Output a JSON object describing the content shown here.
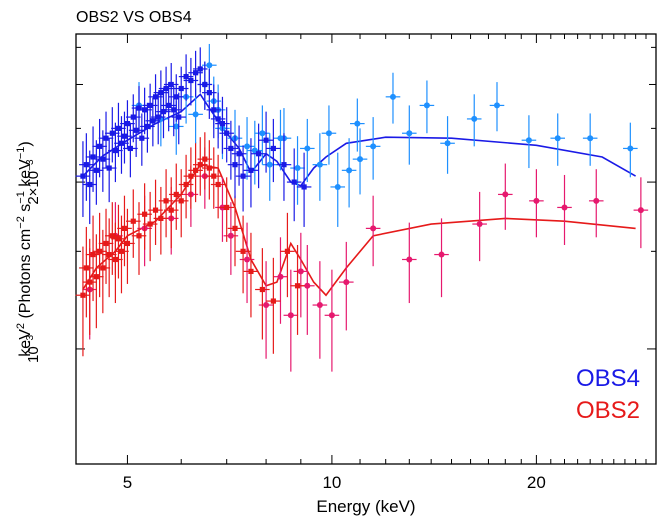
{
  "chart_data": {
    "type": "scatter",
    "title": "OBS2 VS OBS4",
    "xlabel": "Energy (keV)",
    "ylabel_main": "keV",
    "ylabel_sup": "2",
    "ylabel_open": " (Photons cm",
    "ylabel_sup2": "−2",
    "ylabel_mid": " s",
    "ylabel_sup3": "−1",
    "ylabel_mid2": " keV",
    "ylabel_sup4": "−1",
    "ylabel_close": ")",
    "xscale": "log",
    "yscale": "log",
    "xlim": [
      4.2,
      30
    ],
    "ylim": [
      0.00062,
      0.0037
    ],
    "x_ticks": [
      {
        "value": 5,
        "label": "5"
      },
      {
        "value": 10,
        "label": "10"
      },
      {
        "value": 20,
        "label": "20"
      }
    ],
    "y_ticks": [
      {
        "value": 0.001,
        "base": "10",
        "exp": "−3",
        "coef": ""
      },
      {
        "value": 0.002,
        "base": "10",
        "exp": "−3",
        "coef": "2×"
      }
    ],
    "legend": [
      {
        "label": "OBS4",
        "color": "#1a1ae6"
      },
      {
        "label": "OBS2",
        "color": "#e61a1a"
      }
    ],
    "series": [
      {
        "name": "OBS4",
        "data_color": "#1a1ae6",
        "data_color2": "#1e90ff",
        "model_color": "#1a1ae6",
        "model": [
          [
            4.3,
            0.00205
          ],
          [
            4.6,
            0.00223
          ],
          [
            5.0,
            0.00238
          ],
          [
            5.5,
            0.00255
          ],
          [
            6.0,
            0.00268
          ],
          [
            6.4,
            0.00288
          ],
          [
            6.6,
            0.00272
          ],
          [
            7.0,
            0.00245
          ],
          [
            7.3,
            0.0023
          ],
          [
            7.6,
            0.00208
          ],
          [
            8.0,
            0.00225
          ],
          [
            8.3,
            0.00218
          ],
          [
            8.7,
            0.002
          ],
          [
            9.0,
            0.00197
          ],
          [
            9.4,
            0.00212
          ],
          [
            9.8,
            0.00222
          ],
          [
            10.5,
            0.00235
          ],
          [
            12,
            0.00241
          ],
          [
            15,
            0.0024
          ],
          [
            20,
            0.00233
          ],
          [
            25,
            0.00222
          ],
          [
            28,
            0.00205
          ]
        ],
        "points": [
          [
            4.3,
            0.00205,
            0.00032
          ],
          [
            4.35,
            0.00215,
            0.0003
          ],
          [
            4.4,
            0.00198,
            0.0003
          ],
          [
            4.45,
            0.00222,
            0.0003
          ],
          [
            4.5,
            0.0021,
            0.00028
          ],
          [
            4.55,
            0.00232,
            0.00028
          ],
          [
            4.6,
            0.0022,
            0.00028
          ],
          [
            4.65,
            0.0024,
            0.00028
          ],
          [
            4.7,
            0.00212,
            0.00028
          ],
          [
            4.75,
            0.00245,
            0.00028
          ],
          [
            4.8,
            0.00228,
            0.00028
          ],
          [
            4.85,
            0.0025,
            0.00028
          ],
          [
            4.9,
            0.00235,
            0.00028
          ],
          [
            4.95,
            0.00242,
            0.00026
          ],
          [
            5.0,
            0.00255,
            0.00026
          ],
          [
            5.05,
            0.0023,
            0.00026
          ],
          [
            5.1,
            0.00262,
            0.00026
          ],
          [
            5.15,
            0.00248,
            0.00026
          ],
          [
            5.2,
            0.00272,
            0.00026
          ],
          [
            5.25,
            0.0024,
            0.00026
          ],
          [
            5.3,
            0.0027,
            0.00026
          ],
          [
            5.35,
            0.00252,
            0.00026
          ],
          [
            5.4,
            0.00275,
            0.00026
          ],
          [
            5.45,
            0.00258,
            0.00026
          ],
          [
            5.5,
            0.00285,
            0.00028
          ],
          [
            5.55,
            0.00262,
            0.00028
          ],
          [
            5.6,
            0.0029,
            0.00028
          ],
          [
            5.65,
            0.00268,
            0.00028
          ],
          [
            5.7,
            0.00295,
            0.00028
          ],
          [
            5.75,
            0.00275,
            0.00028
          ],
          [
            5.8,
            0.003,
            0.00028
          ],
          [
            5.85,
            0.0027,
            0.00028
          ],
          [
            5.9,
            0.00285,
            0.00028
          ],
          [
            5.95,
            0.00262,
            0.00028
          ],
          [
            6.0,
            0.00295,
            0.00028
          ],
          [
            6.1,
            0.0031,
            0.0003
          ],
          [
            6.2,
            0.00305,
            0.0003
          ],
          [
            6.3,
            0.00315,
            0.0003
          ],
          [
            6.4,
            0.0032,
            0.0003
          ],
          [
            6.5,
            0.003,
            0.0003
          ],
          [
            6.6,
            0.0029,
            0.0003
          ],
          [
            6.7,
            0.0027,
            0.0003
          ],
          [
            6.8,
            0.0026,
            0.0003
          ],
          [
            6.9,
            0.00255,
            0.0003
          ],
          [
            7.0,
            0.00245,
            0.00028
          ],
          [
            7.1,
            0.0023,
            0.00028
          ],
          [
            7.2,
            0.00215,
            0.00028
          ],
          [
            7.3,
            0.00225,
            0.00028
          ],
          [
            7.4,
            0.00205,
            0.00028
          ],
          [
            7.6,
            0.0021,
            0.0003
          ],
          [
            7.8,
            0.00225,
            0.0003
          ],
          [
            8.0,
            0.00238,
            0.0003
          ],
          [
            8.2,
            0.0023,
            0.0003
          ],
          [
            8.5,
            0.00215,
            0.0003
          ],
          [
            8.8,
            0.002,
            0.0003
          ],
          [
            9.1,
            0.00196,
            0.0003
          ]
        ],
        "points_light": [
          [
            5.2,
            0.00275,
            0.00028
          ],
          [
            5.6,
            0.0026,
            0.00028
          ],
          [
            5.9,
            0.00252,
            0.00028
          ],
          [
            6.1,
            0.00285,
            0.0003
          ],
          [
            6.3,
            0.00265,
            0.0003
          ],
          [
            6.5,
            0.003,
            0.0003
          ],
          [
            6.6,
            0.00325,
            0.0003
          ],
          [
            6.7,
            0.0028,
            0.0003
          ],
          [
            6.8,
            0.0027,
            0.0003
          ],
          [
            6.9,
            0.0025,
            0.0003
          ],
          [
            7.2,
            0.0024,
            0.0003
          ],
          [
            7.5,
            0.00232,
            0.0003
          ],
          [
            7.7,
            0.00228,
            0.0003
          ],
          [
            8.1,
            0.00215,
            0.0003
          ],
          [
            8.4,
            0.0024,
            0.0003
          ],
          [
            8.9,
            0.00212,
            0.0003
          ],
          [
            9.2,
            0.0023,
            0.0003
          ],
          [
            9.6,
            0.00215,
            0.0003
          ],
          [
            10.2,
            0.00196,
            0.0003
          ],
          [
            10.6,
            0.0021,
            0.0003
          ],
          [
            11.0,
            0.0022,
            0.0003
          ],
          [
            11.5,
            0.00232,
            0.0003
          ],
          [
            12.3,
            0.00285,
            0.0003
          ],
          [
            13.0,
            0.00245,
            0.0003
          ],
          [
            13.8,
            0.00275,
            0.0003
          ],
          [
            14.8,
            0.00235,
            0.00028
          ],
          [
            16.2,
            0.0026,
            0.00028
          ],
          [
            17.5,
            0.00275,
            0.00028
          ],
          [
            19.5,
            0.00238,
            0.00026
          ],
          [
            21.5,
            0.0024,
            0.00026
          ],
          [
            24.0,
            0.0024,
            0.00026
          ],
          [
            27.5,
            0.0023,
            0.00026
          ],
          [
            8.5,
            0.0024,
            0.00032
          ],
          [
            7.9,
            0.00245,
            0.0003
          ],
          [
            9.9,
            0.00245,
            0.0003
          ],
          [
            10.9,
            0.00255,
            0.00028
          ]
        ]
      },
      {
        "name": "OBS2",
        "data_color": "#e61a1a",
        "data_color2": "#e6196e",
        "model_color": "#e61a1a",
        "model": [
          [
            4.3,
            0.00128
          ],
          [
            4.5,
            0.0014
          ],
          [
            4.8,
            0.0015
          ],
          [
            5.0,
            0.0016
          ],
          [
            5.5,
            0.0017
          ],
          [
            6.0,
            0.0019
          ],
          [
            6.4,
            0.00215
          ],
          [
            6.8,
            0.00212
          ],
          [
            7.2,
            0.0018
          ],
          [
            7.6,
            0.00145
          ],
          [
            8.0,
            0.0013
          ],
          [
            8.3,
            0.00132
          ],
          [
            8.7,
            0.00155
          ],
          [
            9.0,
            0.00145
          ],
          [
            9.4,
            0.00132
          ],
          [
            9.8,
            0.00125
          ],
          [
            10.5,
            0.0014
          ],
          [
            11.5,
            0.0016
          ],
          [
            14,
            0.00168
          ],
          [
            18,
            0.00172
          ],
          [
            22,
            0.0017
          ],
          [
            28,
            0.00165
          ]
        ],
        "points": [
          [
            4.3,
            0.00125,
            0.00028
          ],
          [
            4.35,
            0.0014,
            0.00026
          ],
          [
            4.4,
            0.00132,
            0.00026
          ],
          [
            4.45,
            0.00148,
            0.00026
          ],
          [
            4.5,
            0.00135,
            0.00026
          ],
          [
            4.55,
            0.0015,
            0.00026
          ],
          [
            4.6,
            0.0014,
            0.00024
          ],
          [
            4.65,
            0.00155,
            0.00024
          ],
          [
            4.7,
            0.00148,
            0.00024
          ],
          [
            4.75,
            0.0016,
            0.00024
          ],
          [
            4.8,
            0.00145,
            0.00024
          ],
          [
            4.85,
            0.00158,
            0.00024
          ],
          [
            4.9,
            0.0015,
            0.00024
          ],
          [
            4.95,
            0.00165,
            0.00024
          ],
          [
            5.0,
            0.00155,
            0.00024
          ],
          [
            5.1,
            0.0017,
            0.00024
          ],
          [
            5.2,
            0.0016,
            0.00024
          ],
          [
            5.3,
            0.00175,
            0.00024
          ],
          [
            5.4,
            0.00168,
            0.00024
          ],
          [
            5.5,
            0.00178,
            0.00024
          ],
          [
            5.6,
            0.00172,
            0.00024
          ],
          [
            5.7,
            0.00185,
            0.00026
          ],
          [
            5.8,
            0.00178,
            0.00026
          ],
          [
            5.9,
            0.0019,
            0.00026
          ],
          [
            6.0,
            0.00185,
            0.00026
          ],
          [
            6.1,
            0.00198,
            0.00026
          ],
          [
            6.2,
            0.00205,
            0.00026
          ],
          [
            6.3,
            0.0021,
            0.00026
          ],
          [
            6.4,
            0.00215,
            0.00026
          ],
          [
            6.5,
            0.0022,
            0.00026
          ],
          [
            6.6,
            0.00212,
            0.00026
          ],
          [
            6.7,
            0.00205,
            0.00026
          ],
          [
            6.8,
            0.00198,
            0.00026
          ],
          [
            7.0,
            0.0018,
            0.00024
          ],
          [
            7.2,
            0.00165,
            0.00024
          ],
          [
            7.4,
            0.0015,
            0.00024
          ],
          [
            7.6,
            0.00138,
            0.00024
          ],
          [
            7.9,
            0.00128,
            0.00024
          ],
          [
            8.2,
            0.00122,
            0.00024
          ],
          [
            8.6,
            0.0015,
            0.00026
          ],
          [
            8.9,
            0.0013,
            0.00024
          ]
        ],
        "points_light": [
          [
            4.4,
            0.00128,
            0.00024
          ],
          [
            4.8,
            0.0016,
            0.00024
          ],
          [
            5.3,
            0.00165,
            0.00024
          ],
          [
            5.8,
            0.00172,
            0.00024
          ],
          [
            6.2,
            0.0019,
            0.00024
          ],
          [
            6.5,
            0.00205,
            0.00026
          ],
          [
            6.9,
            0.0018,
            0.00024
          ],
          [
            7.1,
            0.0016,
            0.00024
          ],
          [
            7.5,
            0.00145,
            0.00024
          ],
          [
            8.0,
            0.0012,
            0.00024
          ],
          [
            8.4,
            0.00135,
            0.00024
          ],
          [
            9.2,
            0.0013,
            0.00024
          ],
          [
            9.6,
            0.0012,
            0.00024
          ],
          [
            10.0,
            0.00115,
            0.00024
          ],
          [
            10.5,
            0.00132,
            0.00024
          ],
          [
            11.5,
            0.00165,
            0.00024
          ],
          [
            13.0,
            0.00145,
            0.00024
          ],
          [
            14.5,
            0.00148,
            0.00024
          ],
          [
            16.5,
            0.00168,
            0.00024
          ],
          [
            18.0,
            0.0019,
            0.00026
          ],
          [
            20.0,
            0.00185,
            0.00026
          ],
          [
            22.0,
            0.0018,
            0.00026
          ],
          [
            24.5,
            0.00185,
            0.00026
          ],
          [
            28.5,
            0.00178,
            0.00026
          ],
          [
            9.0,
            0.00138,
            0.00024
          ],
          [
            8.7,
            0.00115,
            0.00024
          ]
        ]
      }
    ]
  }
}
